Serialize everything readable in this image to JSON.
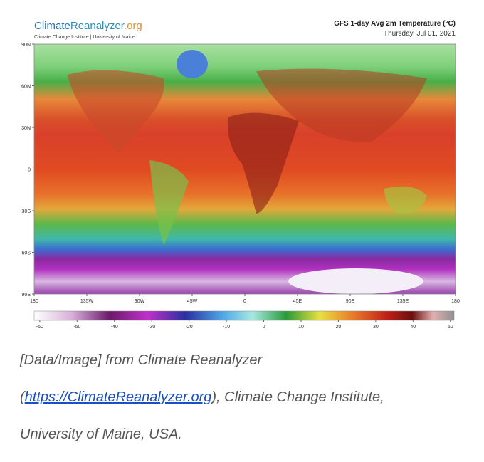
{
  "header": {
    "logo": [
      "Climate",
      "Reanalyzer",
      ".org"
    ],
    "subtitle": "Climate Change Institute | University of Maine",
    "title": "GFS 1-day Avg 2m Temperature (°C)",
    "date": "Thursday, Jul 01, 2021"
  },
  "map": {
    "lat_range": [
      -90,
      90
    ],
    "lon_range": [
      -180,
      180
    ],
    "lat_ticks": [
      {
        "value": 90,
        "label": "90N"
      },
      {
        "value": 60,
        "label": "60N"
      },
      {
        "value": 30,
        "label": "30N"
      },
      0,
      {
        "value": -30,
        "label": "30S"
      },
      {
        "value": -60,
        "label": "60S"
      },
      {
        "value": -90,
        "label": "90S"
      }
    ],
    "lon_ticks": [
      {
        "value": -180,
        "label": "180"
      },
      {
        "value": -135,
        "label": "135W"
      },
      {
        "value": -90,
        "label": "90W"
      },
      {
        "value": -45,
        "label": "45W"
      },
      0,
      {
        "value": 45,
        "label": "45E"
      },
      {
        "value": 90,
        "label": "90E"
      },
      {
        "value": 135,
        "label": "135E"
      },
      {
        "value": 180,
        "label": "180"
      }
    ]
  },
  "colorbar": {
    "range": [
      -61.5,
      51
    ],
    "ticks": [
      -60,
      -50,
      -40,
      -30,
      -20,
      -10,
      0,
      10,
      20,
      30,
      40,
      50
    ]
  },
  "caption": {
    "line1": "[Data/Image] from Climate Reanalyzer",
    "open": "(",
    "link": "https://ClimateReanalyzer.org",
    "line2": "), Climate Change Institute,",
    "line3": "University of Maine, USA."
  }
}
